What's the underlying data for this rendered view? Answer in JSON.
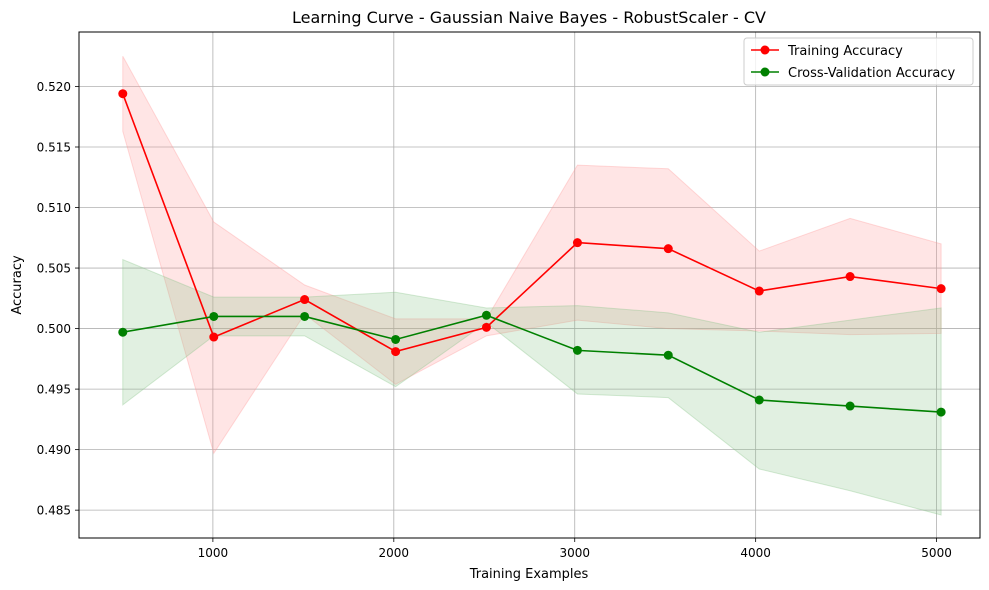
{
  "chart_data": {
    "type": "line",
    "title": "Learning Curve - Gaussian Naive Bayes - RobustScaler - CV",
    "xlabel": "Training Examples",
    "ylabel": "Accuracy",
    "xlim": [
      260,
      5240
    ],
    "ylim": [
      0.4827,
      0.5245
    ],
    "xticks": [
      1000,
      2000,
      3000,
      4000,
      5000
    ],
    "yticks": [
      0.485,
      0.49,
      0.495,
      0.5,
      0.505,
      0.51,
      0.515,
      0.52
    ],
    "ytick_labels": [
      "0.485",
      "0.490",
      "0.495",
      "0.500",
      "0.505",
      "0.510",
      "0.515",
      "0.520"
    ],
    "grid": true,
    "legend_position": "top-right",
    "x": [
      502,
      1005,
      1507,
      2010,
      2512,
      3015,
      3517,
      4020,
      4522,
      5025
    ],
    "series": [
      {
        "name": "Training Accuracy",
        "color": "#ff0000",
        "band_color": "#ff9999",
        "values": [
          0.5194,
          0.4993,
          0.5024,
          0.4981,
          0.5001,
          0.5071,
          0.5066,
          0.5031,
          0.5043,
          0.5033
        ],
        "upper": [
          0.5225,
          0.5088,
          0.5036,
          0.5008,
          0.5008,
          0.5135,
          0.5132,
          0.5064,
          0.5091,
          0.507
        ],
        "lower": [
          0.5163,
          0.4897,
          0.5012,
          0.4954,
          0.4994,
          0.5007,
          0.5,
          0.4998,
          0.4995,
          0.4996
        ]
      },
      {
        "name": "Cross-Validation Accuracy",
        "color": "#008000",
        "band_color": "#88c288",
        "values": [
          0.4997,
          0.501,
          0.501,
          0.4991,
          0.5011,
          0.4982,
          0.4978,
          0.4941,
          0.4936,
          0.4931
        ],
        "upper": [
          0.5057,
          0.5026,
          0.5026,
          0.503,
          0.5017,
          0.5019,
          0.5013,
          0.4997,
          0.5007,
          0.5017
        ],
        "lower": [
          0.4937,
          0.4994,
          0.4994,
          0.4952,
          0.5005,
          0.4946,
          0.4943,
          0.4884,
          0.4866,
          0.4846
        ]
      }
    ]
  }
}
